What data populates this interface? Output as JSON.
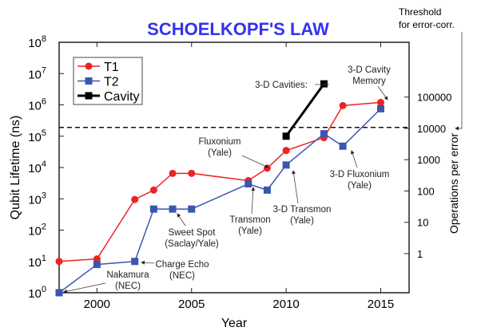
{
  "chart_data": {
    "type": "line",
    "title": "SCHOELKOPF'S LAW",
    "xlabel": "Year",
    "ylabel": "Qubit Lifetime (ns)",
    "y2label": "Operations per error",
    "yscale": "log",
    "xlim": [
      1998,
      2016.5
    ],
    "ylim": [
      1,
      100000000
    ],
    "x_ticks": [
      2000,
      2005,
      2010,
      2015
    ],
    "y_ticks": [
      {
        "exp": 0,
        "label": "10"
      },
      {
        "exp": 1,
        "label": "10"
      },
      {
        "exp": 2,
        "label": "10"
      },
      {
        "exp": 3,
        "label": "10"
      },
      {
        "exp": 4,
        "label": "10"
      },
      {
        "exp": 5,
        "label": "10"
      },
      {
        "exp": 6,
        "label": "10"
      },
      {
        "exp": 7,
        "label": "10"
      },
      {
        "exp": 8,
        "label": "10"
      }
    ],
    "y2_ticks": [
      "1",
      "10",
      "100",
      "1000",
      "10000",
      "100000"
    ],
    "y2_offset_decades": 1.25,
    "series": [
      {
        "name": "T1",
        "color": "#ee2222",
        "marker": "circle",
        "x": [
          1998,
          2000,
          2002,
          2003,
          2004,
          2005,
          2008,
          2009,
          2010,
          2012,
          2013,
          2015
        ],
        "y": [
          10,
          12,
          950,
          1900,
          6500,
          6500,
          3800,
          9500,
          35000,
          90000,
          950000,
          1200000
        ]
      },
      {
        "name": "T2",
        "color": "#3a56b0",
        "marker": "square",
        "x": [
          1998,
          2000,
          2002,
          2003,
          2004,
          2005,
          2008,
          2009,
          2010,
          2012,
          2013,
          2015
        ],
        "y": [
          1,
          8,
          10,
          470,
          470,
          470,
          3000,
          1900,
          12000,
          120000,
          48000,
          750000
        ]
      },
      {
        "name": "Cavity",
        "color": "#000000",
        "marker": "square",
        "x": [
          2010,
          2012
        ],
        "y": [
          100000,
          4700000
        ]
      }
    ],
    "threshold": {
      "value": 190000,
      "ops_label": "10000",
      "label_line1": "Threshold",
      "label_line2": "for error-corr."
    },
    "legend": {
      "position": "top-left",
      "entries": [
        "T1",
        "T2",
        "Cavity"
      ]
    },
    "annotations": [
      {
        "id": "cavity-memory",
        "lines": [
          "3-D Cavity",
          "Memory"
        ]
      },
      {
        "id": "cavities",
        "lines": [
          "3-D Cavities:"
        ]
      },
      {
        "id": "fluxonium",
        "lines": [
          "Fluxonium",
          "(Yale)"
        ]
      },
      {
        "id": "fluxonium-3d",
        "lines": [
          "3-D Fluxonium",
          "(Yale)"
        ]
      },
      {
        "id": "transmon-3d",
        "lines": [
          "3-D Transmon",
          "(Yale)"
        ]
      },
      {
        "id": "transmon",
        "lines": [
          "Transmon",
          "(Yale)"
        ]
      },
      {
        "id": "sweet-spot",
        "lines": [
          "Sweet Spot",
          "(Saclay/Yale)"
        ]
      },
      {
        "id": "charge-echo",
        "lines": [
          "Charge Echo",
          "(NEC)"
        ]
      },
      {
        "id": "nakamura",
        "lines": [
          "Nakamura",
          "(NEC)"
        ]
      }
    ],
    "grid": false
  }
}
